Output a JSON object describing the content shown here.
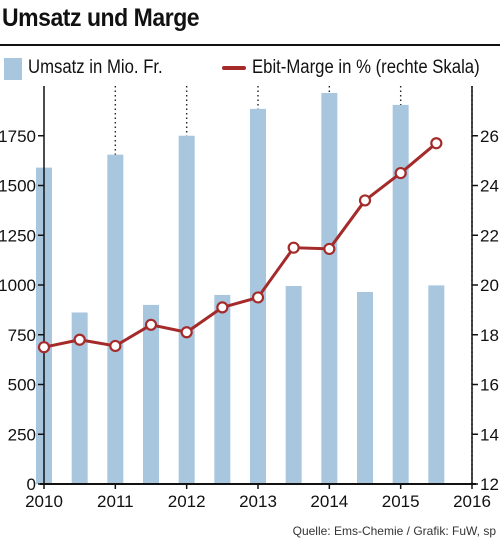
{
  "title": "Umsatz und Marge",
  "legend": {
    "bars": "Umsatz in Mio. Fr.",
    "line": "Ebit-Marge in % (rechte Skala)"
  },
  "source": "Quelle: Ems-Chemie / Grafik: FuW, sp",
  "colors": {
    "bar": "#a9c6df",
    "line": "#a52a2a",
    "text": "#111111"
  },
  "chart_data": {
    "type": "bar",
    "x_tick_labels": [
      "2010",
      "2011",
      "2012",
      "2013",
      "2014",
      "2015",
      "2016"
    ],
    "x_range": [
      2010,
      2016
    ],
    "y_left_ticks": [
      "0",
      "250",
      "500",
      "750",
      "1000",
      "1250",
      "1500",
      "1750"
    ],
    "y_left_range": [
      0,
      2000
    ],
    "y_right_ticks": [
      "12",
      "14",
      "16",
      "18",
      "20",
      "22",
      "24",
      "26"
    ],
    "y_right_range": [
      12,
      28
    ],
    "grid": "vertical-dotted",
    "series": [
      {
        "name": "Umsatz in Mio. Fr.",
        "type": "bar",
        "axis": "left",
        "points": [
          {
            "x": 2010.0,
            "y": 1590
          },
          {
            "x": 2010.5,
            "y": 862
          },
          {
            "x": 2011.0,
            "y": 1655
          },
          {
            "x": 2011.5,
            "y": 900
          },
          {
            "x": 2012.0,
            "y": 1750
          },
          {
            "x": 2012.5,
            "y": 950
          },
          {
            "x": 2013.0,
            "y": 1885
          },
          {
            "x": 2013.5,
            "y": 995
          },
          {
            "x": 2014.0,
            "y": 1965
          },
          {
            "x": 2014.5,
            "y": 965
          },
          {
            "x": 2015.0,
            "y": 1905
          },
          {
            "x": 2015.5,
            "y": 998
          }
        ]
      },
      {
        "name": "Ebit-Marge in % (rechte Skala)",
        "type": "line",
        "axis": "right",
        "points": [
          {
            "x": 2010.0,
            "y": 17.5
          },
          {
            "x": 2010.5,
            "y": 17.8
          },
          {
            "x": 2011.0,
            "y": 17.55
          },
          {
            "x": 2011.5,
            "y": 18.4
          },
          {
            "x": 2012.0,
            "y": 18.1
          },
          {
            "x": 2012.5,
            "y": 19.1
          },
          {
            "x": 2013.0,
            "y": 19.5
          },
          {
            "x": 2013.5,
            "y": 21.5
          },
          {
            "x": 2014.0,
            "y": 21.45
          },
          {
            "x": 2014.5,
            "y": 23.4
          },
          {
            "x": 2015.0,
            "y": 24.5
          },
          {
            "x": 2015.5,
            "y": 25.7
          }
        ]
      }
    ]
  }
}
